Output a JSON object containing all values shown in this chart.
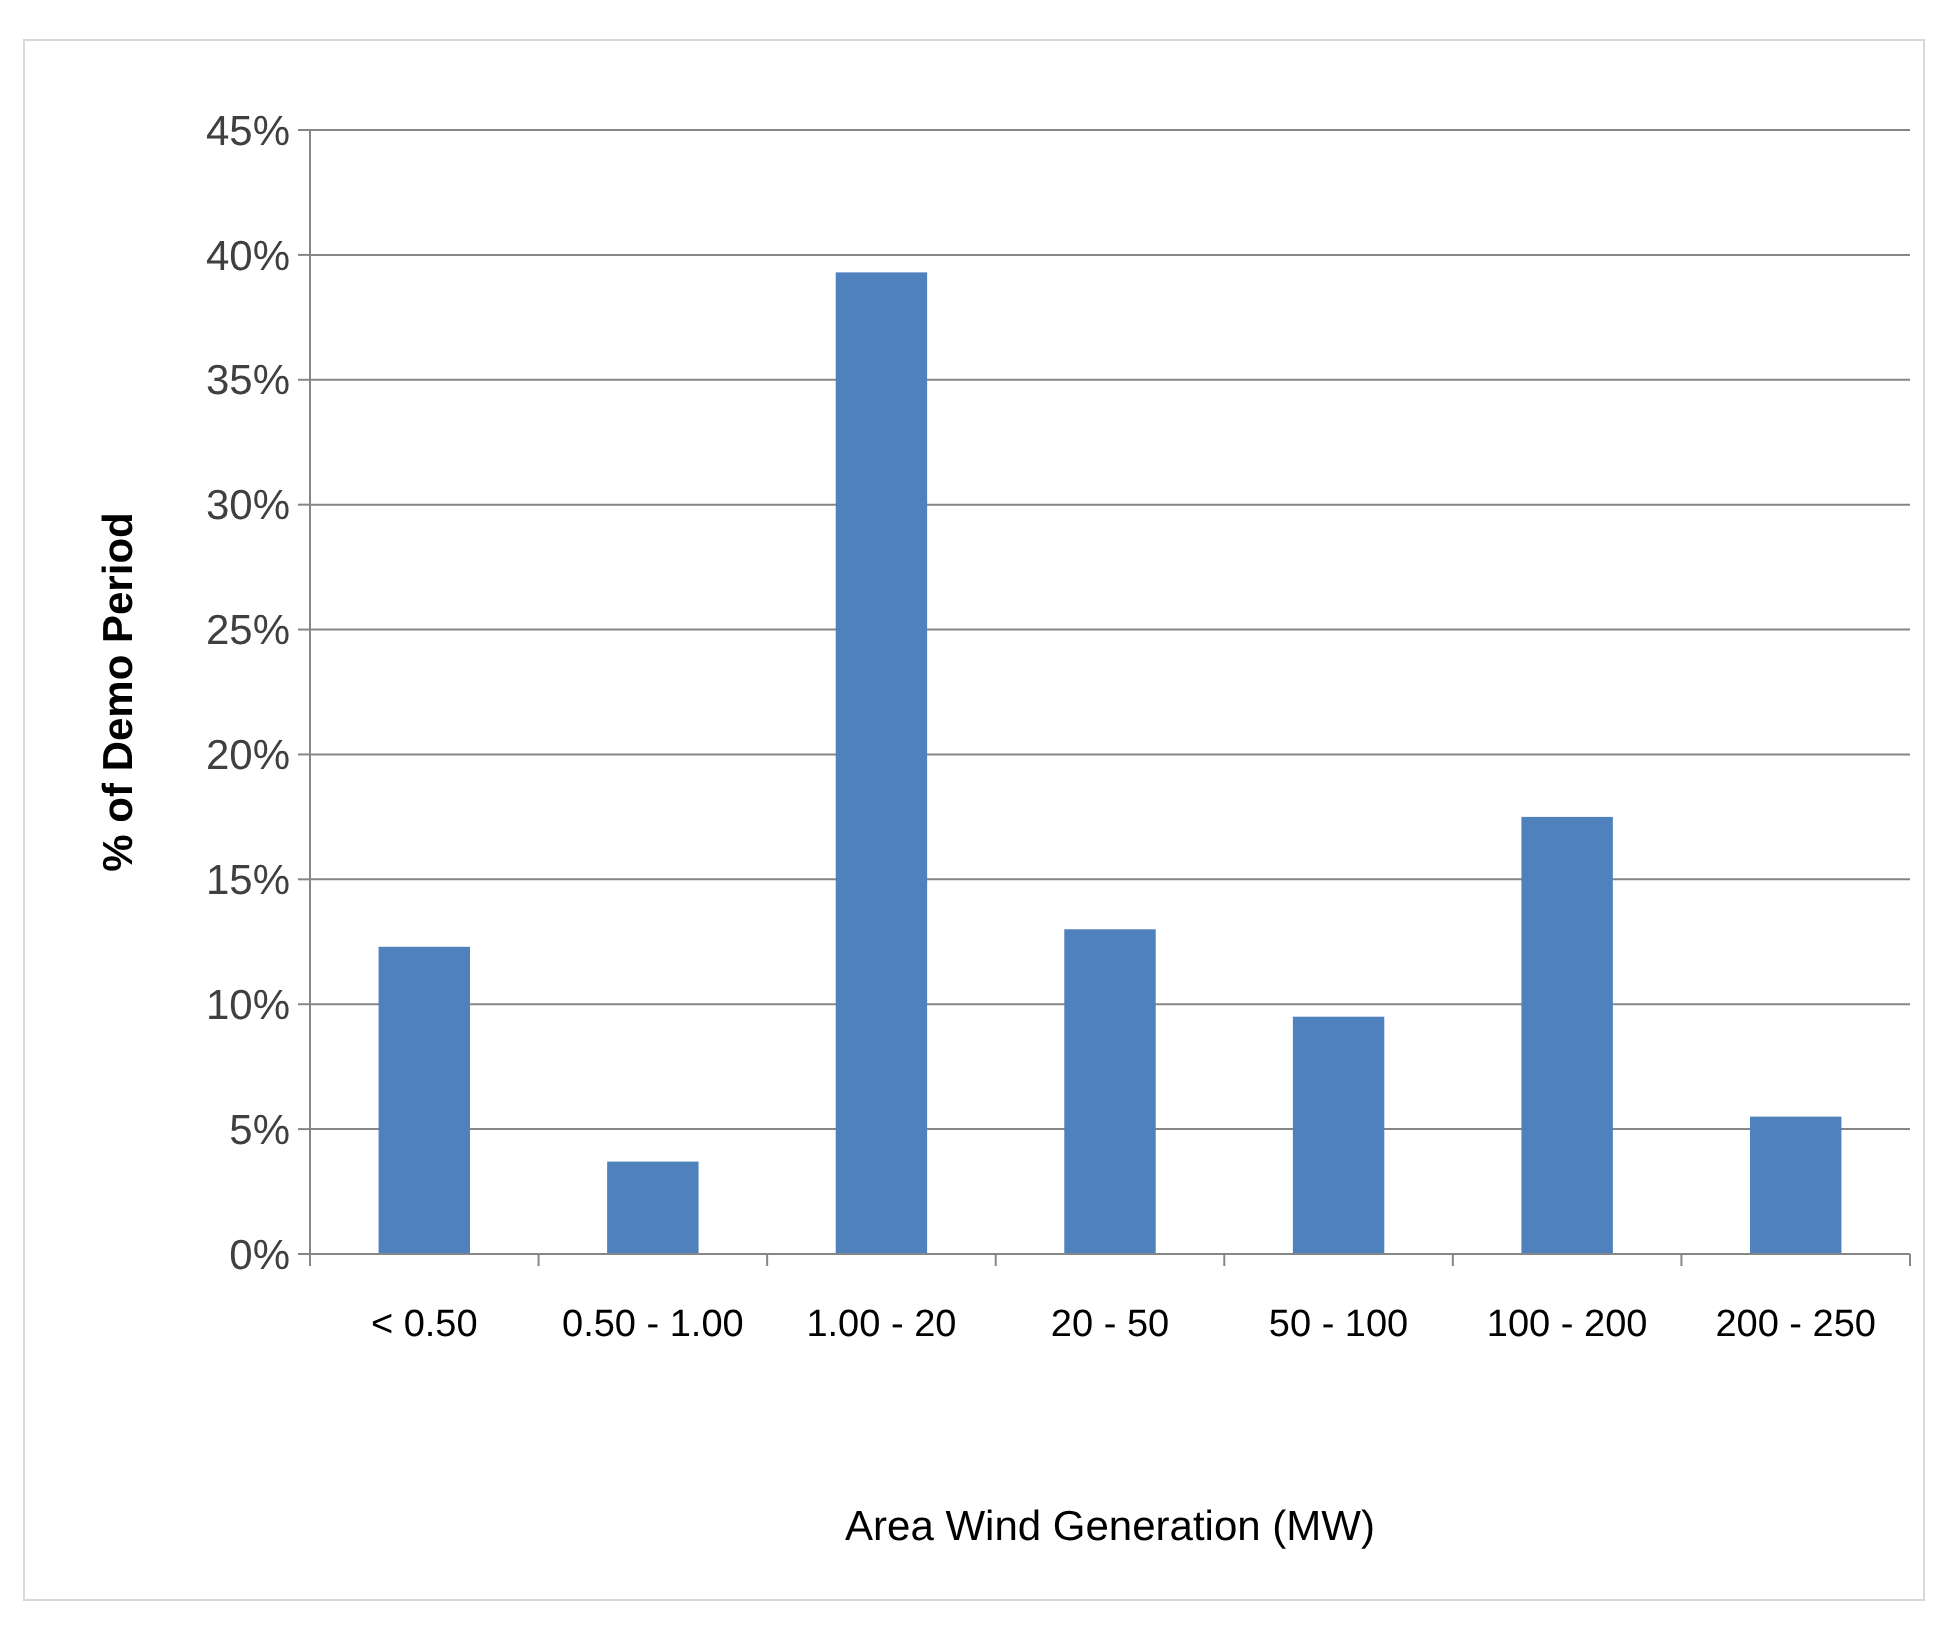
{
  "chart_data": {
    "type": "bar",
    "xlabel": "Area Wind Generation (MW)",
    "ylabel": "% of Demo Period",
    "categories": [
      "< 0.50",
      "0.50 - 1.00",
      "1.00 - 20",
      "20 - 50",
      "50 - 100",
      "100 - 200",
      "200 - 250"
    ],
    "values": [
      12.3,
      3.7,
      39.3,
      13.0,
      9.5,
      17.5,
      5.5
    ],
    "color": "#4f81bd",
    "ylim": [
      0,
      45
    ],
    "yticks": [
      {
        "value": 0,
        "label": "0%"
      },
      {
        "value": 5,
        "label": "5%"
      },
      {
        "value": 10,
        "label": "10%"
      },
      {
        "value": 15,
        "label": "15%"
      },
      {
        "value": 20,
        "label": "20%"
      },
      {
        "value": 25,
        "label": "25%"
      },
      {
        "value": 30,
        "label": "30%"
      },
      {
        "value": 35,
        "label": "35%"
      },
      {
        "value": 40,
        "label": "40%"
      },
      {
        "value": 45,
        "label": "45%"
      }
    ],
    "grid": "y"
  }
}
